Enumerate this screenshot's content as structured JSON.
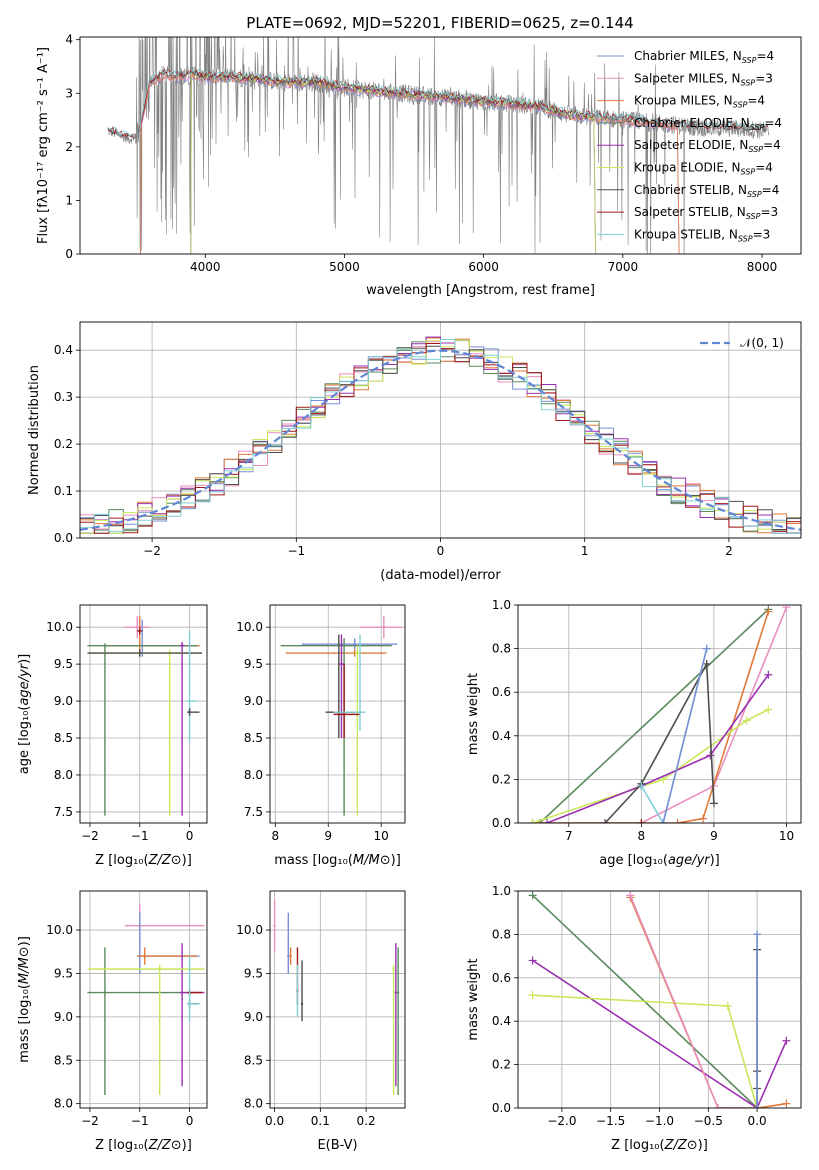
{
  "figure_title": "PLATE=0692, MJD=52201, FIBERID=0625, z=0.144",
  "colors": {
    "chabrier_miles": "#7b8fd6",
    "salpeter_miles": "#e88fbf",
    "kroupa_miles": "#e07a3a",
    "chabrier_elodie": "#5b8a5e",
    "salpeter_elodie": "#9b30b0",
    "kroupa_elodie": "#c8e85a",
    "chabrier_stelib": "#4d4d4d",
    "salpeter_stelib": "#a01818",
    "kroupa_stelib": "#80cfd6",
    "data": "#808080",
    "normal": "#5f87d6"
  },
  "chart_data": [
    {
      "id": "spectrum",
      "type": "line",
      "title": "PLATE=0692, MJD=52201, FIBERID=0625, z=0.144",
      "xlabel": "wavelength [Angstrom, rest frame]",
      "ylabel": "Flux [fλ10⁻¹⁷ erg cm⁻² s⁻¹ A⁻¹]",
      "xlim": [
        3100,
        8280
      ],
      "ylim": [
        0,
        4.05
      ],
      "xticks": [
        4000,
        5000,
        6000,
        7000,
        8000
      ],
      "yticks": [
        0,
        1,
        2,
        3,
        4
      ],
      "continuum": {
        "x": [
          3300,
          3450,
          3520,
          3600,
          3700,
          3800,
          3900,
          4000,
          4200,
          4400,
          4600,
          4800,
          5000,
          5200,
          5400,
          5600,
          5800,
          6000,
          6200,
          6400,
          6600,
          6800,
          7000,
          7200,
          7400,
          7600,
          7800,
          8050
        ],
        "y": [
          2.3,
          2.15,
          2.2,
          3.2,
          3.35,
          3.3,
          3.35,
          3.3,
          3.3,
          3.25,
          3.2,
          3.2,
          3.1,
          3.05,
          3.0,
          2.95,
          2.9,
          2.85,
          2.8,
          2.75,
          2.6,
          2.55,
          2.5,
          2.45,
          2.4,
          2.35,
          2.35,
          2.3
        ]
      },
      "legend": [
        {
          "label": "Chabrier MILES, N",
          "sub": "SSP",
          "suffix": "=4",
          "color_key": "chabrier_miles"
        },
        {
          "label": "Salpeter MILES, N",
          "sub": "SSP",
          "suffix": "=3",
          "color_key": "salpeter_miles"
        },
        {
          "label": "Kroupa MILES, N",
          "sub": "SSP",
          "suffix": "=4",
          "color_key": "kroupa_miles"
        },
        {
          "label": "Chabrier ELODIE, N",
          "sub": "SSP",
          "suffix": "=4",
          "color_key": "chabrier_elodie"
        },
        {
          "label": "Salpeter ELODIE, N",
          "sub": "SSP",
          "suffix": "=4",
          "color_key": "salpeter_elodie"
        },
        {
          "label": "Kroupa ELODIE, N",
          "sub": "SSP",
          "suffix": "=4",
          "color_key": "kroupa_elodie"
        },
        {
          "label": "Chabrier STELIB, N",
          "sub": "SSP",
          "suffix": "=4",
          "color_key": "chabrier_stelib"
        },
        {
          "label": "Salpeter STELIB, N",
          "sub": "SSP",
          "suffix": "=3",
          "color_key": "salpeter_stelib"
        },
        {
          "label": "Kroupa STELIB, N",
          "sub": "SSP",
          "suffix": "=3",
          "color_key": "kroupa_stelib"
        }
      ],
      "legend_position": "top-right"
    },
    {
      "id": "residuals",
      "type": "line",
      "xlabel": "(data-model)/error",
      "ylabel": "Normed distribution",
      "xlim": [
        -2.5,
        2.5
      ],
      "ylim": [
        0,
        0.46
      ],
      "xticks": [
        -2,
        -1,
        0,
        1,
        2
      ],
      "yticks": [
        0.0,
        0.1,
        0.2,
        0.3,
        0.4
      ],
      "legend": "𝒩(0, 1)",
      "legend_position": "top-right"
    },
    {
      "id": "age_vs_z",
      "type": "scatter",
      "xlabel": "Z [log₁₀(Z/Z⊙)]",
      "ylabel": "age  [log₁₀(age/yr)]",
      "xlim": [
        -2.2,
        0.35
      ],
      "ylim": [
        7.35,
        10.3
      ],
      "xticks": [
        -2,
        -1,
        0
      ],
      "yticks": [
        7.5,
        8.0,
        8.5,
        9.0,
        9.5,
        10.0
      ],
      "points": [
        {
          "c": "salpeter_miles",
          "x": -1.05,
          "y": 10.0,
          "xe": [
            -1.3,
            -0.8
          ],
          "ye": [
            9.85,
            10.15
          ]
        },
        {
          "c": "chabrier_miles",
          "x": -0.95,
          "y": 9.75,
          "xe": [
            -1.7,
            0.2
          ],
          "ye": [
            9.6,
            10.1
          ]
        },
        {
          "c": "kroupa_miles",
          "x": -1.0,
          "y": 9.75,
          "xe": [
            -1.7,
            0.2
          ],
          "ye": [
            9.6,
            10.15
          ]
        },
        {
          "c": "chabrier_elodie",
          "x": -1.7,
          "y": 9.75,
          "xe": [
            -2.05,
            0.15
          ],
          "ye": [
            7.45,
            9.78
          ]
        },
        {
          "c": "salpeter_elodie",
          "x": -0.15,
          "y": 9.75,
          "xe": [
            -0.2,
            -0.1
          ],
          "ye": [
            7.45,
            9.8
          ]
        },
        {
          "c": "kroupa_elodie",
          "x": -0.4,
          "y": 9.65,
          "xe": [
            -2.05,
            0.25
          ],
          "ye": [
            7.45,
            9.7
          ]
        },
        {
          "c": "chabrier_stelib",
          "x": -1.0,
          "y": 9.65,
          "xe": [
            -2.05,
            0.25
          ],
          "ye": [
            9.6,
            9.7
          ]
        },
        {
          "c": "salpeter_stelib",
          "x": -1.0,
          "y": 9.95,
          "xe": [
            -1.05,
            -0.95
          ],
          "ye": [
            9.9,
            10.0
          ]
        },
        {
          "c": "kroupa_stelib",
          "x": 0.0,
          "y": 9.0,
          "xe": [
            -0.05,
            0.15
          ],
          "ye": [
            8.45,
            9.95
          ]
        },
        {
          "c": "chabrier_stelib",
          "x": 0.0,
          "y": 8.85,
          "xe": [
            -0.05,
            0.2
          ],
          "ye": [
            8.8,
            8.9
          ]
        }
      ]
    },
    {
      "id": "age_vs_mass",
      "type": "scatter",
      "xlabel": "mass [log₁₀(M/M⊙)]",
      "ylabel": "",
      "xlim": [
        7.9,
        10.45
      ],
      "ylim": [
        7.35,
        10.3
      ],
      "xticks": [
        8,
        9,
        10
      ],
      "yticks": [
        7.5,
        8.0,
        8.5,
        9.0,
        9.5,
        10.0
      ],
      "points": [
        {
          "c": "salpeter_miles",
          "x": 10.05,
          "y": 10.0,
          "xe": [
            9.6,
            10.4
          ],
          "ye": [
            9.85,
            10.15
          ]
        },
        {
          "c": "chabrier_miles",
          "x": 9.5,
          "y": 9.77,
          "xe": [
            8.5,
            10.3
          ],
          "ye": [
            9.7,
            9.85
          ]
        },
        {
          "c": "kroupa_miles",
          "x": 9.5,
          "y": 9.65,
          "xe": [
            8.2,
            10.1
          ],
          "ye": [
            9.6,
            9.7
          ]
        },
        {
          "c": "chabrier_elodie",
          "x": 9.3,
          "y": 9.75,
          "xe": [
            8.1,
            10.2
          ],
          "ye": [
            7.45,
            9.85
          ]
        },
        {
          "c": "salpeter_elodie",
          "x": 9.25,
          "y": 9.5,
          "xe": [
            9.2,
            9.3
          ],
          "ye": [
            8.5,
            9.9
          ]
        },
        {
          "c": "kroupa_elodie",
          "x": 9.55,
          "y": 9.65,
          "xe": [
            9.5,
            9.6
          ],
          "ye": [
            7.45,
            9.75
          ]
        },
        {
          "c": "chabrier_stelib",
          "x": 9.2,
          "y": 8.85,
          "xe": [
            8.95,
            9.5
          ],
          "ye": [
            8.5,
            9.9
          ]
        },
        {
          "c": "salpeter_stelib",
          "x": 9.3,
          "y": 8.82,
          "xe": [
            9.1,
            9.6
          ],
          "ye": [
            8.5,
            9.5
          ]
        },
        {
          "c": "kroupa_stelib",
          "x": 9.6,
          "y": 8.85,
          "xe": [
            9.1,
            9.7
          ],
          "ye": [
            8.6,
            9.9
          ]
        }
      ]
    },
    {
      "id": "mass_weight_vs_age",
      "type": "line",
      "xlabel": "age  [log₁₀(age/yr)]",
      "ylabel": "mass weight",
      "xlim": [
        6.3,
        10.2
      ],
      "ylim": [
        0,
        1.0
      ],
      "xticks": [
        7,
        8,
        9,
        10
      ],
      "yticks": [
        0.0,
        0.2,
        0.4,
        0.6,
        0.8,
        1.0
      ],
      "series": [
        {
          "c": "chabrier_elodie",
          "x": [
            6.6,
            9.75
          ],
          "y": [
            0.0,
            0.98
          ]
        },
        {
          "c": "salpeter_miles",
          "x": [
            6.5,
            8.0,
            9.0,
            10.0
          ],
          "y": [
            0.0,
            0.0,
            0.17,
            0.99
          ]
        },
        {
          "c": "kroupa_miles",
          "x": [
            6.5,
            8.5,
            8.85,
            9.75
          ],
          "y": [
            0.0,
            0.0,
            0.02,
            0.97
          ]
        },
        {
          "c": "kroupa_elodie",
          "x": [
            6.5,
            8.3,
            9.45,
            9.75
          ],
          "y": [
            0.0,
            0.2,
            0.47,
            0.52
          ]
        },
        {
          "c": "salpeter_elodie",
          "x": [
            6.7,
            8.0,
            8.95,
            9.75
          ],
          "y": [
            0.0,
            0.17,
            0.31,
            0.68
          ]
        },
        {
          "c": "chabrier_stelib",
          "x": [
            7.5,
            8.0,
            8.9,
            9.0
          ],
          "y": [
            0.0,
            0.18,
            0.73,
            0.09
          ]
        },
        {
          "c": "kroupa_stelib",
          "x": [
            8.0,
            8.3,
            8.9
          ],
          "y": [
            0.17,
            0.0,
            0.8
          ]
        },
        {
          "c": "salpeter_stelib",
          "x": [
            8.0
          ],
          "y": [
            0.0
          ]
        },
        {
          "c": "chabrier_miles",
          "x": [
            8.3,
            8.9
          ],
          "y": [
            0.0,
            0.8
          ]
        }
      ]
    },
    {
      "id": "mass_vs_z",
      "type": "scatter",
      "xlabel": "Z [log₁₀(Z/Z⊙)]",
      "ylabel": "mass [log₁₀(M/M⊙)]",
      "xlim": [
        -2.2,
        0.35
      ],
      "ylim": [
        7.95,
        10.45
      ],
      "xticks": [
        -2,
        -1,
        0
      ],
      "yticks": [
        8.0,
        8.5,
        9.0,
        9.5,
        10.0
      ],
      "points": [
        {
          "c": "salpeter_miles",
          "x": -1.0,
          "y": 10.05,
          "xe": [
            -1.3,
            0.3
          ],
          "ye": [
            9.8,
            10.3
          ]
        },
        {
          "c": "chabrier_miles",
          "x": -1.0,
          "y": 9.7,
          "xe": [
            -1.05,
            0.2
          ],
          "ye": [
            9.5,
            10.2
          ]
        },
        {
          "c": "kroupa_miles",
          "x": -0.9,
          "y": 9.7,
          "xe": [
            -1.05,
            0.15
          ],
          "ye": [
            9.6,
            9.8
          ]
        },
        {
          "c": "chabrier_elodie",
          "x": -1.7,
          "y": 9.28,
          "xe": [
            -2.05,
            0.25
          ],
          "ye": [
            8.1,
            9.8
          ]
        },
        {
          "c": "salpeter_elodie",
          "x": -0.15,
          "y": 9.28,
          "xe": [
            -0.2,
            0.3
          ],
          "ye": [
            8.2,
            9.85
          ]
        },
        {
          "c": "kroupa_elodie",
          "x": -0.6,
          "y": 9.55,
          "xe": [
            -2.05,
            0.3
          ],
          "ye": [
            8.1,
            9.6
          ]
        },
        {
          "c": "chabrier_stelib",
          "x": 0.0,
          "y": 9.15,
          "xe": [
            -0.05,
            0.2
          ],
          "ye": [
            9.1,
            9.2
          ]
        },
        {
          "c": "salpeter_stelib",
          "x": 0.0,
          "y": 9.28,
          "xe": [
            -0.05,
            0.25
          ],
          "ye": [
            9.25,
            9.32
          ]
        },
        {
          "c": "kroupa_stelib",
          "x": 0.0,
          "y": 9.15,
          "xe": [
            -0.05,
            0.2
          ],
          "ye": [
            8.95,
            9.7
          ]
        }
      ]
    },
    {
      "id": "mass_vs_ebv",
      "type": "scatter",
      "xlabel": "E(B-V)",
      "ylabel": "",
      "xlim": [
        -0.01,
        0.285
      ],
      "ylim": [
        7.95,
        10.45
      ],
      "xticks": [
        0.0,
        0.1,
        0.2
      ],
      "yticks": [
        8.0,
        8.5,
        9.0,
        9.5,
        10.0
      ],
      "points": [
        {
          "c": "salpeter_miles",
          "x": 0.0,
          "y": 10.05,
          "ye": [
            9.75,
            10.35
          ]
        },
        {
          "c": "chabrier_miles",
          "x": 0.03,
          "y": 9.7,
          "ye": [
            9.5,
            10.2
          ]
        },
        {
          "c": "kroupa_miles",
          "x": 0.035,
          "y": 9.7,
          "ye": [
            9.6,
            9.8
          ]
        },
        {
          "c": "salpeter_stelib",
          "x": 0.05,
          "y": 9.3,
          "ye": [
            9.15,
            9.8
          ]
        },
        {
          "c": "kroupa_stelib",
          "x": 0.05,
          "y": 9.15,
          "ye": [
            9.0,
            9.6
          ]
        },
        {
          "c": "chabrier_stelib",
          "x": 0.06,
          "y": 9.15,
          "ye": [
            8.95,
            9.65
          ]
        },
        {
          "c": "salpeter_elodie",
          "x": 0.265,
          "y": 9.28,
          "ye": [
            8.2,
            9.85
          ]
        },
        {
          "c": "chabrier_elodie",
          "x": 0.27,
          "y": 9.28,
          "ye": [
            8.1,
            9.8
          ]
        },
        {
          "c": "kroupa_elodie",
          "x": 0.26,
          "y": 9.55,
          "ye": [
            8.1,
            9.6
          ]
        }
      ]
    },
    {
      "id": "mass_weight_vs_z",
      "type": "line",
      "xlabel": "Z [log₁₀(Z/Z⊙)]",
      "ylabel": "mass weight",
      "xlim": [
        -2.45,
        0.45
      ],
      "ylim": [
        0,
        1.0
      ],
      "xticks": [
        -2.0,
        -1.5,
        -1.0,
        -0.5,
        0.0
      ],
      "yticks": [
        0.0,
        0.2,
        0.4,
        0.6,
        0.8,
        1.0
      ],
      "series": [
        {
          "c": "chabrier_elodie",
          "x": [
            -2.3,
            0.0
          ],
          "y": [
            0.98,
            0.0
          ]
        },
        {
          "c": "salpeter_elodie",
          "x": [
            -2.3,
            0.0,
            0.3
          ],
          "y": [
            0.68,
            0.0,
            0.31
          ]
        },
        {
          "c": "kroupa_elodie",
          "x": [
            -2.3,
            -0.3,
            0.0
          ],
          "y": [
            0.52,
            0.47,
            0.0
          ]
        },
        {
          "c": "kroupa_miles",
          "x": [
            -1.3,
            -0.4,
            0.0,
            0.3
          ],
          "y": [
            0.97,
            0.0,
            0.0,
            0.02
          ]
        },
        {
          "c": "salpeter_miles",
          "x": [
            -1.3,
            -0.4,
            0.0
          ],
          "y": [
            0.98,
            0.0,
            0.0
          ]
        },
        {
          "c": "kroupa_stelib",
          "x": [
            0.0,
            0.0
          ],
          "y": [
            0.0,
            0.8
          ]
        },
        {
          "c": "chabrier_stelib",
          "x": [
            0.0,
            0.0,
            0.0,
            0.0
          ],
          "y": [
            0.73,
            0.17,
            0.09,
            0.0
          ]
        },
        {
          "c": "chabrier_miles",
          "x": [
            0.0,
            0.0
          ],
          "y": [
            0.0,
            0.8
          ]
        }
      ]
    }
  ]
}
